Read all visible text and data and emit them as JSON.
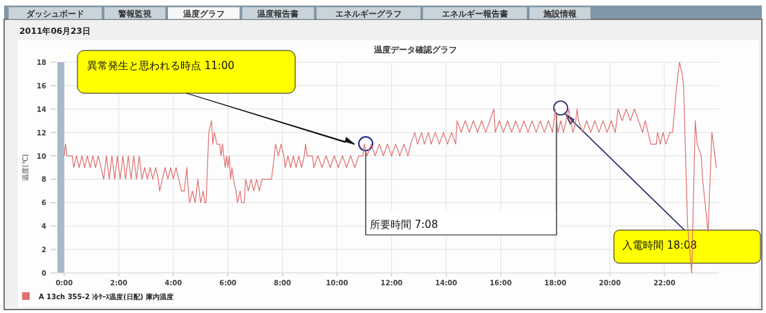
{
  "chart_data": {
    "type": "line",
    "title": "温度データ確認グラフ",
    "subtitle": "2011年06月23日",
    "ylabel": "温度(℃)",
    "xlim": [
      -0.3,
      24
    ],
    "ylim": [
      0,
      18
    ],
    "xticks": [
      {
        "value": 0,
        "label": "0:00"
      },
      {
        "value": 2,
        "label": "2:00"
      },
      {
        "value": 4,
        "label": "4:00"
      },
      {
        "value": 6,
        "label": "6:00"
      },
      {
        "value": 8,
        "label": "8:00"
      },
      {
        "value": 10,
        "label": "10:00"
      },
      {
        "value": 12,
        "label": "12:00"
      },
      {
        "value": 14,
        "label": "14:00"
      },
      {
        "value": 16,
        "label": "16:00"
      },
      {
        "value": 18,
        "label": "18:00"
      },
      {
        "value": 20,
        "label": "20:00"
      },
      {
        "value": 22,
        "label": "22:00"
      }
    ],
    "yticks": [
      0,
      2,
      4,
      6,
      8,
      10,
      12,
      14,
      16,
      18
    ],
    "grid": true,
    "legend": "bottom left",
    "marker": "none",
    "line_style": "solid",
    "bands": [
      {
        "axis": "x",
        "from": -0.25,
        "to": 0,
        "color": "#a9b8cb"
      }
    ],
    "annotations": [
      "ダッシュボード",
      "警報監視",
      "温度グラフ",
      "温度報告書",
      "エネルギーグラフ",
      "エネルギー報告書",
      "施設情報",
      "異常発生と思われる時点  11:00",
      {
        "text": "入電時間  18:08",
        "x": 18.4,
        "y": 13.5
      },
      "所要時間  7:08"
    ],
    "series": [
      {
        "name": "A 13ch 355-2  冷ｹｰｽ温度(日配) 庫内温度",
        "color": "#e07070",
        "x": [
          0,
          0.05,
          0.1,
          0.3,
          0.35,
          0.45,
          0.55,
          0.65,
          0.75,
          0.85,
          0.95,
          1.05,
          1.15,
          1.25,
          1.35,
          1.45,
          1.55,
          1.65,
          1.75,
          1.85,
          1.95,
          2.05,
          2.15,
          2.25,
          2.35,
          2.45,
          2.55,
          2.65,
          2.75,
          2.85,
          2.95,
          3.05,
          3.15,
          3.25,
          3.35,
          3.45,
          3.5,
          3.6,
          3.7,
          3.8,
          3.9,
          4.0,
          4.1,
          4.2,
          4.3,
          4.4,
          4.5,
          4.55,
          4.6,
          4.7,
          4.8,
          4.9,
          5.0,
          5.1,
          5.15,
          5.2,
          5.3,
          5.4,
          5.45,
          5.5,
          5.6,
          5.7,
          5.75,
          5.8,
          5.85,
          5.9,
          5.95,
          6.0,
          6.05,
          6.1,
          6.15,
          6.2,
          6.3,
          6.35,
          6.45,
          6.5,
          6.6,
          6.65,
          6.75,
          6.85,
          6.95,
          7.05,
          7.15,
          7.25,
          7.6,
          7.7,
          7.75,
          7.85,
          7.95,
          8.05,
          8.1,
          8.2,
          8.3,
          8.4,
          8.5,
          8.6,
          8.7,
          8.8,
          8.85,
          8.9,
          9.1,
          9.15,
          9.3,
          9.45,
          9.6,
          9.75,
          9.9,
          10.05,
          10.2,
          10.35,
          10.5,
          10.65,
          10.8,
          10.95,
          11.0,
          11.1,
          11.25,
          11.4,
          11.55,
          11.7,
          11.85,
          12.0,
          12.15,
          12.3,
          12.45,
          12.6,
          12.7,
          12.85,
          12.95,
          13.1,
          13.2,
          13.35,
          13.45,
          13.6,
          13.75,
          13.9,
          14.05,
          14.2,
          14.35,
          14.4,
          14.55,
          14.7,
          14.85,
          15.0,
          15.15,
          15.3,
          15.45,
          15.6,
          15.75,
          15.8,
          15.95,
          16.1,
          16.25,
          16.4,
          16.55,
          16.7,
          16.85,
          17.0,
          17.15,
          17.3,
          17.45,
          17.6,
          17.75,
          17.9,
          18.0,
          18.1,
          18.2,
          18.3,
          18.4,
          18.5,
          18.55,
          18.65,
          18.75,
          18.8,
          18.85,
          19.0,
          19.15,
          19.3,
          19.45,
          19.6,
          19.75,
          19.9,
          20.05,
          20.2,
          20.3,
          20.45,
          20.6,
          20.75,
          20.9,
          21.05,
          21.2,
          21.3,
          21.4,
          21.5,
          21.7,
          21.75,
          21.85,
          21.95,
          22.05,
          22.2,
          22.3,
          22.45,
          22.55,
          22.65,
          22.7,
          22.85,
          23.0,
          23.13,
          23.2,
          23.35,
          23.4,
          23.6,
          23.74,
          23.8,
          23.85,
          23.9
        ],
        "values": [
          10,
          11,
          10,
          10,
          9,
          10,
          9,
          10,
          9,
          10,
          9,
          10,
          9,
          10,
          9,
          8,
          10,
          8,
          10,
          8,
          10,
          8,
          10,
          8,
          10,
          8,
          10,
          8,
          10,
          8,
          9,
          8,
          9,
          8,
          9,
          8,
          7,
          8,
          9,
          8,
          9,
          8,
          9,
          8,
          7,
          7,
          9,
          7,
          6,
          7,
          6,
          8,
          6,
          7,
          6,
          6,
          12,
          13,
          11,
          12,
          11,
          11,
          10,
          11,
          10,
          9,
          10,
          9,
          10,
          8,
          9,
          8,
          7,
          6,
          7,
          6,
          6,
          8,
          7,
          8,
          7,
          8,
          7,
          8,
          8,
          10,
          11,
          10,
          11,
          10,
          9,
          10,
          9,
          10,
          9,
          10,
          9,
          10,
          11,
          10,
          10,
          9,
          10,
          9,
          10,
          9,
          10,
          9,
          10,
          9,
          10,
          9,
          10,
          10,
          11,
          10,
          11,
          10,
          11,
          10,
          11,
          10,
          11,
          10,
          11,
          10,
          11,
          12,
          11,
          12,
          11,
          12,
          11,
          12,
          11,
          12,
          11,
          12,
          11,
          13,
          12,
          13,
          12,
          13,
          12,
          13,
          12,
          13,
          14,
          12,
          13,
          12,
          13,
          12,
          13,
          12,
          13,
          12,
          13,
          12,
          13,
          12,
          13,
          12,
          14,
          12,
          13,
          12,
          13,
          14,
          13,
          12,
          13,
          14,
          13,
          12,
          13,
          12,
          13,
          12,
          13,
          12,
          13,
          12,
          14,
          13,
          14,
          13,
          14,
          13,
          12,
          13,
          12,
          11,
          11,
          12,
          11,
          12,
          11,
          12,
          12,
          16,
          18,
          17,
          16,
          4,
          0,
          13,
          11,
          10,
          8,
          3.5,
          12,
          11,
          10,
          9
        ]
      }
    ]
  }
}
